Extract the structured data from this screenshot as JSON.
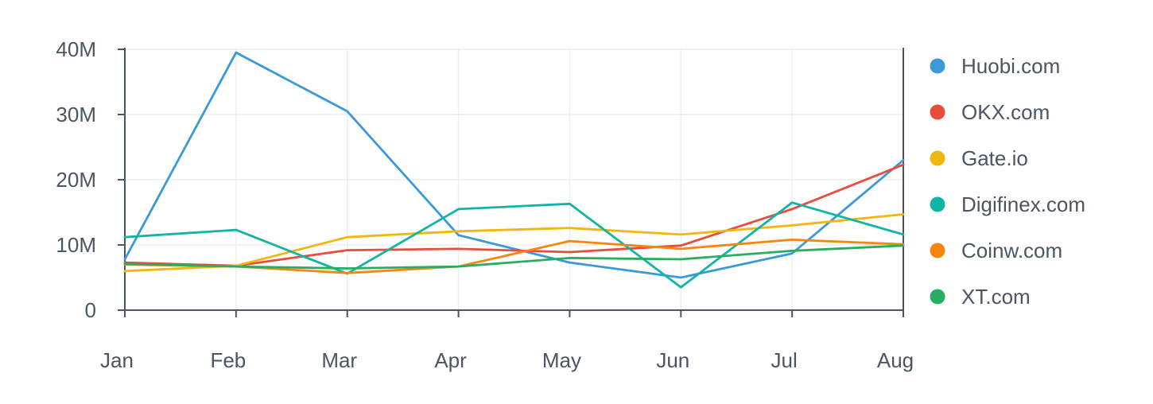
{
  "chart_data": {
    "type": "line",
    "title": "",
    "xlabel": "",
    "ylabel": "",
    "categories": [
      "Jan",
      "Feb",
      "Mar",
      "Apr",
      "May",
      "Jun",
      "Jul",
      "Aug"
    ],
    "ylim": [
      0,
      40000000
    ],
    "yticks": [
      {
        "value": 0,
        "label": "0"
      },
      {
        "value": 10000000,
        "label": "10M"
      },
      {
        "value": 20000000,
        "label": "20M"
      },
      {
        "value": 30000000,
        "label": "30M"
      },
      {
        "value": 40000000,
        "label": "40M"
      }
    ],
    "grid": true,
    "legend_position": "right",
    "series": [
      {
        "name": "Huobi.com",
        "color": "#3a9ad9",
        "values": [
          7800000,
          39500000,
          30500000,
          11500000,
          7300000,
          5000000,
          8700000,
          23000000
        ]
      },
      {
        "name": "OKX.com",
        "color": "#e74c3c",
        "values": [
          7300000,
          6800000,
          9200000,
          9400000,
          8900000,
          9900000,
          15500000,
          22300000
        ]
      },
      {
        "name": "Gate.io",
        "color": "#f1b70f",
        "values": [
          6000000,
          6800000,
          11200000,
          12100000,
          12600000,
          11600000,
          13000000,
          14700000
        ]
      },
      {
        "name": "Digifinex.com",
        "color": "#12b5a5",
        "values": [
          11200000,
          12300000,
          5600000,
          15500000,
          16300000,
          3500000,
          16500000,
          11600000
        ]
      },
      {
        "name": "Coinw.com",
        "color": "#f7860f",
        "values": [
          7000000,
          6700000,
          5700000,
          6700000,
          10600000,
          9400000,
          10800000,
          10100000
        ]
      },
      {
        "name": "XT.com",
        "color": "#27ae60",
        "values": [
          7100000,
          6700000,
          6400000,
          6700000,
          8000000,
          7800000,
          9100000,
          9900000
        ]
      }
    ]
  }
}
